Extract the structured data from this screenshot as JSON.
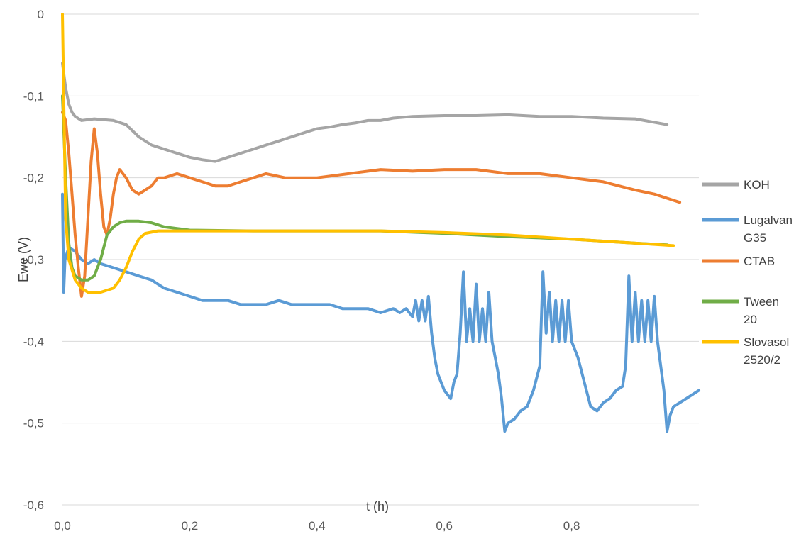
{
  "chart_data": {
    "type": "line",
    "title": "",
    "xlabel": "t (h)",
    "ylabel": "Ewe (V)",
    "xlim": [
      0,
      0.96
    ],
    "ylim": [
      -0.6,
      0
    ],
    "x_ticks": [
      "0,0",
      "0,2",
      "0,4",
      "0,6",
      "0,8"
    ],
    "x_tick_values": [
      0,
      0.2,
      0.4,
      0.6,
      0.8
    ],
    "y_ticks": [
      "0",
      "-0,1",
      "-0,2",
      "-0,3",
      "-0,4",
      "-0,5",
      "-0,6"
    ],
    "y_tick_values": [
      0,
      -0.1,
      -0.2,
      -0.3,
      -0.4,
      -0.5,
      -0.6
    ],
    "grid": "horizontal",
    "legend_position": "right",
    "series": [
      {
        "name": "KOH",
        "legend_lines": [
          "KOH"
        ],
        "color": "#a5a5a5",
        "points": [
          [
            0,
            -0.06
          ],
          [
            0.005,
            -0.09
          ],
          [
            0.01,
            -0.11
          ],
          [
            0.015,
            -0.12
          ],
          [
            0.02,
            -0.125
          ],
          [
            0.03,
            -0.13
          ],
          [
            0.05,
            -0.128
          ],
          [
            0.08,
            -0.13
          ],
          [
            0.1,
            -0.135
          ],
          [
            0.12,
            -0.15
          ],
          [
            0.14,
            -0.16
          ],
          [
            0.16,
            -0.165
          ],
          [
            0.18,
            -0.17
          ],
          [
            0.2,
            -0.175
          ],
          [
            0.22,
            -0.178
          ],
          [
            0.24,
            -0.18
          ],
          [
            0.26,
            -0.175
          ],
          [
            0.28,
            -0.17
          ],
          [
            0.3,
            -0.165
          ],
          [
            0.32,
            -0.16
          ],
          [
            0.34,
            -0.155
          ],
          [
            0.36,
            -0.15
          ],
          [
            0.38,
            -0.145
          ],
          [
            0.4,
            -0.14
          ],
          [
            0.42,
            -0.138
          ],
          [
            0.44,
            -0.135
          ],
          [
            0.46,
            -0.133
          ],
          [
            0.48,
            -0.13
          ],
          [
            0.5,
            -0.13
          ],
          [
            0.52,
            -0.127
          ],
          [
            0.55,
            -0.125
          ],
          [
            0.6,
            -0.124
          ],
          [
            0.65,
            -0.124
          ],
          [
            0.7,
            -0.123
          ],
          [
            0.75,
            -0.125
          ],
          [
            0.8,
            -0.125
          ],
          [
            0.85,
            -0.127
          ],
          [
            0.9,
            -0.128
          ],
          [
            0.95,
            -0.135
          ]
        ]
      },
      {
        "name": "Lugalvan G35",
        "legend_lines": [
          "Lugalvan",
          "G35"
        ],
        "color": "#5b9bd5",
        "points": [
          [
            0,
            -0.22
          ],
          [
            0.002,
            -0.34
          ],
          [
            0.004,
            -0.3
          ],
          [
            0.01,
            -0.285
          ],
          [
            0.02,
            -0.29
          ],
          [
            0.03,
            -0.3
          ],
          [
            0.04,
            -0.305
          ],
          [
            0.05,
            -0.3
          ],
          [
            0.06,
            -0.305
          ],
          [
            0.08,
            -0.31
          ],
          [
            0.1,
            -0.315
          ],
          [
            0.12,
            -0.32
          ],
          [
            0.14,
            -0.325
          ],
          [
            0.16,
            -0.335
          ],
          [
            0.18,
            -0.34
          ],
          [
            0.2,
            -0.345
          ],
          [
            0.22,
            -0.35
          ],
          [
            0.24,
            -0.35
          ],
          [
            0.26,
            -0.35
          ],
          [
            0.28,
            -0.355
          ],
          [
            0.3,
            -0.355
          ],
          [
            0.32,
            -0.355
          ],
          [
            0.34,
            -0.35
          ],
          [
            0.36,
            -0.355
          ],
          [
            0.38,
            -0.355
          ],
          [
            0.4,
            -0.355
          ],
          [
            0.42,
            -0.355
          ],
          [
            0.44,
            -0.36
          ],
          [
            0.46,
            -0.36
          ],
          [
            0.48,
            -0.36
          ],
          [
            0.5,
            -0.365
          ],
          [
            0.52,
            -0.36
          ],
          [
            0.53,
            -0.365
          ],
          [
            0.54,
            -0.36
          ],
          [
            0.55,
            -0.37
          ],
          [
            0.555,
            -0.35
          ],
          [
            0.56,
            -0.375
          ],
          [
            0.565,
            -0.35
          ],
          [
            0.57,
            -0.375
          ],
          [
            0.575,
            -0.345
          ],
          [
            0.58,
            -0.39
          ],
          [
            0.585,
            -0.42
          ],
          [
            0.59,
            -0.44
          ],
          [
            0.6,
            -0.46
          ],
          [
            0.61,
            -0.47
          ],
          [
            0.615,
            -0.45
          ],
          [
            0.62,
            -0.44
          ],
          [
            0.625,
            -0.39
          ],
          [
            0.63,
            -0.315
          ],
          [
            0.635,
            -0.4
          ],
          [
            0.64,
            -0.36
          ],
          [
            0.645,
            -0.4
          ],
          [
            0.65,
            -0.33
          ],
          [
            0.655,
            -0.4
          ],
          [
            0.66,
            -0.36
          ],
          [
            0.665,
            -0.4
          ],
          [
            0.67,
            -0.34
          ],
          [
            0.675,
            -0.4
          ],
          [
            0.68,
            -0.42
          ],
          [
            0.685,
            -0.44
          ],
          [
            0.69,
            -0.47
          ],
          [
            0.695,
            -0.51
          ],
          [
            0.7,
            -0.5
          ],
          [
            0.71,
            -0.495
          ],
          [
            0.72,
            -0.485
          ],
          [
            0.73,
            -0.48
          ],
          [
            0.74,
            -0.46
          ],
          [
            0.75,
            -0.43
          ],
          [
            0.755,
            -0.315
          ],
          [
            0.76,
            -0.39
          ],
          [
            0.765,
            -0.34
          ],
          [
            0.77,
            -0.4
          ],
          [
            0.775,
            -0.35
          ],
          [
            0.78,
            -0.4
          ],
          [
            0.785,
            -0.35
          ],
          [
            0.79,
            -0.4
          ],
          [
            0.795,
            -0.35
          ],
          [
            0.8,
            -0.4
          ],
          [
            0.81,
            -0.42
          ],
          [
            0.82,
            -0.45
          ],
          [
            0.83,
            -0.48
          ],
          [
            0.84,
            -0.485
          ],
          [
            0.85,
            -0.475
          ],
          [
            0.86,
            -0.47
          ],
          [
            0.87,
            -0.46
          ],
          [
            0.88,
            -0.455
          ],
          [
            0.885,
            -0.43
          ],
          [
            0.89,
            -0.32
          ],
          [
            0.895,
            -0.4
          ],
          [
            0.9,
            -0.34
          ],
          [
            0.905,
            -0.4
          ],
          [
            0.91,
            -0.35
          ],
          [
            0.915,
            -0.4
          ],
          [
            0.92,
            -0.35
          ],
          [
            0.925,
            -0.4
          ],
          [
            0.93,
            -0.345
          ],
          [
            0.935,
            -0.4
          ],
          [
            0.94,
            -0.43
          ],
          [
            0.945,
            -0.46
          ],
          [
            0.95,
            -0.51
          ],
          [
            0.955,
            -0.49
          ],
          [
            0.96,
            -0.48
          ],
          [
            0.97,
            -0.475
          ],
          [
            0.98,
            -0.47
          ],
          [
            0.99,
            -0.465
          ],
          [
            1,
            -0.46
          ]
        ]
      },
      {
        "name": "CTAB",
        "legend_lines": [
          "CTAB"
        ],
        "color": "#ed7d31",
        "points": [
          [
            0,
            -0.12
          ],
          [
            0.005,
            -0.13
          ],
          [
            0.01,
            -0.17
          ],
          [
            0.015,
            -0.22
          ],
          [
            0.02,
            -0.27
          ],
          [
            0.025,
            -0.31
          ],
          [
            0.03,
            -0.345
          ],
          [
            0.035,
            -0.32
          ],
          [
            0.04,
            -0.25
          ],
          [
            0.045,
            -0.18
          ],
          [
            0.05,
            -0.14
          ],
          [
            0.055,
            -0.17
          ],
          [
            0.06,
            -0.22
          ],
          [
            0.065,
            -0.26
          ],
          [
            0.07,
            -0.27
          ],
          [
            0.075,
            -0.25
          ],
          [
            0.08,
            -0.22
          ],
          [
            0.085,
            -0.2
          ],
          [
            0.09,
            -0.19
          ],
          [
            0.1,
            -0.2
          ],
          [
            0.11,
            -0.215
          ],
          [
            0.12,
            -0.22
          ],
          [
            0.13,
            -0.215
          ],
          [
            0.14,
            -0.21
          ],
          [
            0.15,
            -0.2
          ],
          [
            0.16,
            -0.2
          ],
          [
            0.18,
            -0.195
          ],
          [
            0.2,
            -0.2
          ],
          [
            0.22,
            -0.205
          ],
          [
            0.24,
            -0.21
          ],
          [
            0.26,
            -0.21
          ],
          [
            0.28,
            -0.205
          ],
          [
            0.3,
            -0.2
          ],
          [
            0.32,
            -0.195
          ],
          [
            0.35,
            -0.2
          ],
          [
            0.4,
            -0.2
          ],
          [
            0.45,
            -0.195
          ],
          [
            0.5,
            -0.19
          ],
          [
            0.55,
            -0.192
          ],
          [
            0.6,
            -0.19
          ],
          [
            0.65,
            -0.19
          ],
          [
            0.7,
            -0.195
          ],
          [
            0.75,
            -0.195
          ],
          [
            0.8,
            -0.2
          ],
          [
            0.85,
            -0.205
          ],
          [
            0.9,
            -0.215
          ],
          [
            0.93,
            -0.22
          ],
          [
            0.95,
            -0.225
          ],
          [
            0.97,
            -0.23
          ]
        ]
      },
      {
        "name": "Tween 20",
        "legend_lines": [
          "Tween",
          "20"
        ],
        "color": "#70ad47",
        "points": [
          [
            0,
            -0.1
          ],
          [
            0.005,
            -0.2
          ],
          [
            0.01,
            -0.28
          ],
          [
            0.015,
            -0.31
          ],
          [
            0.02,
            -0.32
          ],
          [
            0.03,
            -0.325
          ],
          [
            0.04,
            -0.325
          ],
          [
            0.05,
            -0.32
          ],
          [
            0.06,
            -0.3
          ],
          [
            0.07,
            -0.27
          ],
          [
            0.08,
            -0.26
          ],
          [
            0.09,
            -0.255
          ],
          [
            0.1,
            -0.253
          ],
          [
            0.12,
            -0.253
          ],
          [
            0.14,
            -0.255
          ],
          [
            0.16,
            -0.26
          ],
          [
            0.18,
            -0.262
          ],
          [
            0.2,
            -0.264
          ],
          [
            0.3,
            -0.265
          ],
          [
            0.4,
            -0.265
          ],
          [
            0.5,
            -0.265
          ],
          [
            0.6,
            -0.268
          ],
          [
            0.7,
            -0.272
          ],
          [
            0.8,
            -0.275
          ],
          [
            0.9,
            -0.28
          ],
          [
            0.95,
            -0.282
          ]
        ]
      },
      {
        "name": "Slovasol 2520/2",
        "legend_lines": [
          "Slovasol",
          "2520/2"
        ],
        "color": "#ffc000",
        "points": [
          [
            0,
            0
          ],
          [
            0.002,
            -0.1
          ],
          [
            0.005,
            -0.25
          ],
          [
            0.01,
            -0.3
          ],
          [
            0.02,
            -0.325
          ],
          [
            0.03,
            -0.335
          ],
          [
            0.04,
            -0.34
          ],
          [
            0.06,
            -0.34
          ],
          [
            0.08,
            -0.335
          ],
          [
            0.09,
            -0.325
          ],
          [
            0.1,
            -0.31
          ],
          [
            0.11,
            -0.29
          ],
          [
            0.12,
            -0.275
          ],
          [
            0.13,
            -0.268
          ],
          [
            0.15,
            -0.265
          ],
          [
            0.2,
            -0.265
          ],
          [
            0.3,
            -0.265
          ],
          [
            0.4,
            -0.265
          ],
          [
            0.5,
            -0.265
          ],
          [
            0.6,
            -0.267
          ],
          [
            0.7,
            -0.27
          ],
          [
            0.8,
            -0.275
          ],
          [
            0.9,
            -0.28
          ],
          [
            0.96,
            -0.283
          ]
        ]
      }
    ]
  }
}
